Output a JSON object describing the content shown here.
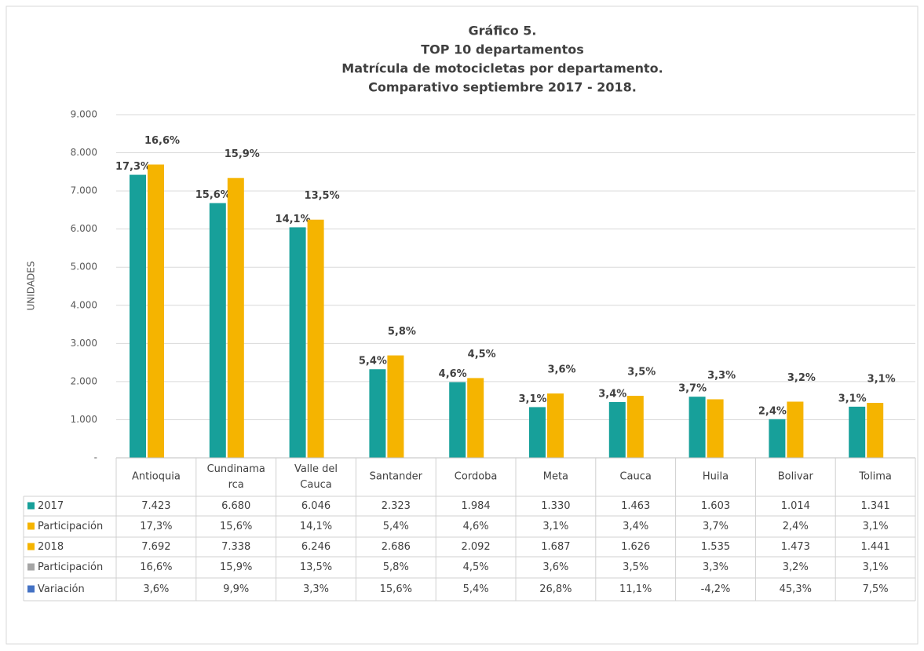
{
  "chart_data": {
    "type": "bar",
    "title": [
      "Gráfico 5.",
      "TOP 10 departamentos",
      "Matrícula de motocicletas por departamento.",
      "Comparativo septiembre 2017 - 2018."
    ],
    "y_label": "UNIDADES",
    "categories": [
      "Antioquia",
      "Cundinamarca",
      "Valle del Cauca",
      "Santander",
      "Cordoba",
      "Meta",
      "Cauca",
      "Huila",
      "Bolivar",
      "Tolima"
    ],
    "series": [
      {
        "name": "2017",
        "color": "#17a09a",
        "type": "bar",
        "values": [
          7423,
          6680,
          6046,
          2323,
          1984,
          1330,
          1463,
          1603,
          1014,
          1341
        ],
        "value_labels": [
          "7.423",
          "6.680",
          "6.046",
          "2.323",
          "1.984",
          "1.330",
          "1.463",
          "1.603",
          "1.014",
          "1.341"
        ]
      },
      {
        "name": "Participación",
        "color": "#f5b400",
        "values": [
          17.3,
          15.6,
          14.1,
          5.4,
          4.6,
          3.1,
          3.4,
          3.7,
          2.4,
          3.1
        ],
        "value_labels": [
          "17,3%",
          "15,6%",
          "14,1%",
          "5,4%",
          "4,6%",
          "3,1%",
          "3,4%",
          "3,7%",
          "2,4%",
          "3,1%"
        ]
      },
      {
        "name": "2018",
        "color": "#f5b400",
        "type": "bar",
        "values": [
          7692,
          7338,
          6246,
          2686,
          2092,
          1687,
          1626,
          1535,
          1473,
          1441
        ],
        "value_labels": [
          "7.692",
          "7.338",
          "6.246",
          "2.686",
          "2.092",
          "1.687",
          "1.626",
          "1.535",
          "1.473",
          "1.441"
        ]
      },
      {
        "name": "Participación",
        "color": "#a5a5a5",
        "values": [
          16.6,
          15.9,
          13.5,
          5.8,
          4.5,
          3.6,
          3.5,
          3.3,
          3.2,
          3.1
        ],
        "value_labels": [
          "16,6%",
          "15,9%",
          "13,5%",
          "5,8%",
          "4,5%",
          "3,6%",
          "3,5%",
          "3,3%",
          "3,2%",
          "3,1%"
        ]
      },
      {
        "name": "Variación",
        "color": "#4472c4",
        "values": [
          3.6,
          9.9,
          3.3,
          15.6,
          5.4,
          26.8,
          11.1,
          -4.2,
          45.3,
          7.5
        ],
        "value_labels": [
          "3,6%",
          "9,9%",
          "3,3%",
          "15,6%",
          "5,4%",
          "26,8%",
          "11,1%",
          "-4,2%",
          "45,3%",
          "7,5%"
        ]
      }
    ],
    "ylim": [
      0,
      9000
    ],
    "yticks": [
      {
        "value": 0,
        "label": "-"
      },
      {
        "value": 1000,
        "label": "1.000"
      },
      {
        "value": 2000,
        "label": "2.000"
      },
      {
        "value": 3000,
        "label": "3.000"
      },
      {
        "value": 4000,
        "label": "4.000"
      },
      {
        "value": 5000,
        "label": "5.000"
      },
      {
        "value": 6000,
        "label": "6.000"
      },
      {
        "value": 7000,
        "label": "7.000"
      },
      {
        "value": 8000,
        "label": "8.000"
      },
      {
        "value": 9000,
        "label": "9.000"
      }
    ],
    "grid": true
  }
}
